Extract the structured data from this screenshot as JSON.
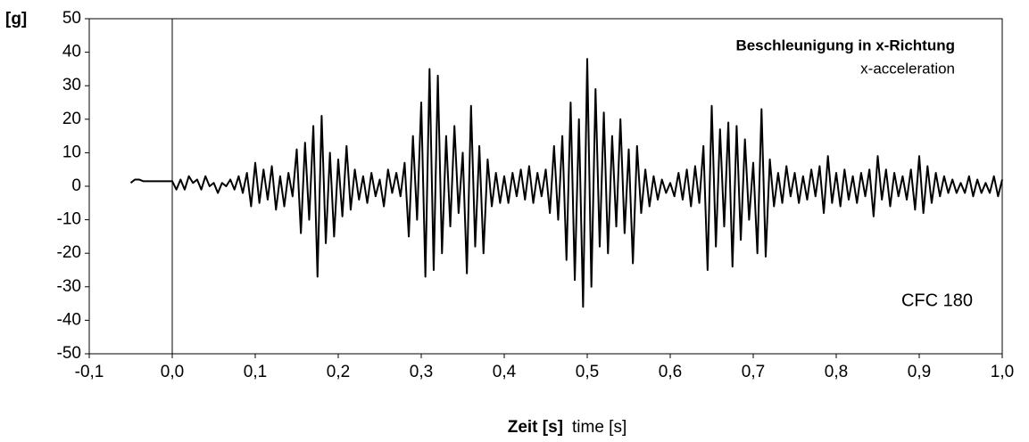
{
  "chart_data": {
    "type": "line",
    "title": "Beschleunigung in x-Richtung",
    "subtitle": "x-acceleration",
    "annotation": "CFC 180",
    "y_label": "[g]",
    "x_label": "Zeit [s]",
    "x_label_en": "time [s]",
    "xlim": [
      -0.1,
      1.0
    ],
    "xticks": [
      {
        "value": -0.1,
        "label": "-0,1"
      },
      {
        "value": 0,
        "label": "0,0"
      },
      {
        "value": 0.1,
        "label": "0,1"
      },
      {
        "value": 0.2,
        "label": "0,2"
      },
      {
        "value": 0.3,
        "label": "0,3"
      },
      {
        "value": 0.4,
        "label": "0,4"
      },
      {
        "value": 0.5,
        "label": "0,5"
      },
      {
        "value": 0.6,
        "label": "0,6"
      },
      {
        "value": 0.7,
        "label": "0,7"
      },
      {
        "value": 0.8,
        "label": "0,8"
      },
      {
        "value": 0.9,
        "label": "0,9"
      },
      {
        "value": 1.0,
        "label": "1,0"
      }
    ],
    "ylim": [
      -50,
      50
    ],
    "yticks": [
      -50,
      -40,
      -30,
      -20,
      -10,
      0,
      10,
      20,
      30,
      40,
      50
    ],
    "grid": false,
    "x": [
      -0.05,
      -0.045,
      -0.04,
      -0.035,
      -0.03,
      -0.025,
      -0.02,
      -0.015,
      -0.01,
      -0.005,
      0,
      0.005,
      0.01,
      0.015,
      0.02,
      0.025,
      0.03,
      0.035,
      0.04,
      0.045,
      0.05,
      0.055,
      0.06,
      0.065,
      0.07,
      0.075,
      0.08,
      0.085,
      0.09,
      0.095,
      0.1,
      0.105,
      0.11,
      0.115,
      0.12,
      0.125,
      0.13,
      0.135,
      0.14,
      0.145,
      0.15,
      0.155,
      0.16,
      0.165,
      0.17,
      0.175,
      0.18,
      0.185,
      0.19,
      0.195,
      0.2,
      0.205,
      0.21,
      0.215,
      0.22,
      0.225,
      0.23,
      0.235,
      0.24,
      0.245,
      0.25,
      0.255,
      0.26,
      0.265,
      0.27,
      0.275,
      0.28,
      0.285,
      0.29,
      0.295,
      0.3,
      0.305,
      0.31,
      0.315,
      0.32,
      0.325,
      0.33,
      0.335,
      0.34,
      0.345,
      0.35,
      0.355,
      0.36,
      0.365,
      0.37,
      0.375,
      0.38,
      0.385,
      0.39,
      0.395,
      0.4,
      0.405,
      0.41,
      0.415,
      0.42,
      0.425,
      0.43,
      0.435,
      0.44,
      0.445,
      0.45,
      0.455,
      0.46,
      0.465,
      0.47,
      0.475,
      0.48,
      0.485,
      0.49,
      0.495,
      0.5,
      0.505,
      0.51,
      0.515,
      0.52,
      0.525,
      0.53,
      0.535,
      0.54,
      0.545,
      0.55,
      0.555,
      0.56,
      0.565,
      0.57,
      0.575,
      0.58,
      0.585,
      0.59,
      0.595,
      0.6,
      0.605,
      0.61,
      0.615,
      0.62,
      0.625,
      0.63,
      0.635,
      0.64,
      0.645,
      0.65,
      0.655,
      0.66,
      0.665,
      0.67,
      0.675,
      0.68,
      0.685,
      0.69,
      0.695,
      0.7,
      0.705,
      0.71,
      0.715,
      0.72,
      0.725,
      0.73,
      0.735,
      0.74,
      0.745,
      0.75,
      0.755,
      0.76,
      0.765,
      0.77,
      0.775,
      0.78,
      0.785,
      0.79,
      0.795,
      0.8,
      0.805,
      0.81,
      0.815,
      0.82,
      0.825,
      0.83,
      0.835,
      0.84,
      0.845,
      0.85,
      0.855,
      0.86,
      0.865,
      0.87,
      0.875,
      0.88,
      0.885,
      0.89,
      0.895,
      0.9,
      0.905,
      0.91,
      0.915,
      0.92,
      0.925,
      0.93,
      0.935,
      0.94,
      0.945,
      0.95,
      0.955,
      0.96,
      0.965,
      0.97,
      0.975,
      0.98,
      0.985,
      0.99,
      0.995,
      1.0
    ],
    "series": [
      {
        "color": "#000000",
        "values": [
          1,
          2,
          2,
          1.5,
          1.5,
          1.5,
          1.5,
          1.5,
          1.5,
          1.5,
          1.5,
          -1,
          2,
          -1,
          3,
          1,
          2,
          -1,
          3,
          0,
          1,
          -2,
          1,
          0,
          2,
          -1,
          3,
          -2,
          4,
          -6,
          7,
          -5,
          5,
          -4,
          6,
          -7,
          3,
          -6,
          4,
          -3,
          11,
          -14,
          13,
          -10,
          18,
          -27,
          21,
          -17,
          10,
          -15,
          8,
          -9,
          12,
          -7,
          5,
          -4,
          3,
          -5,
          4,
          -3,
          2,
          -6,
          5,
          -2,
          4,
          -3,
          7,
          -15,
          15,
          -10,
          25,
          -27,
          35,
          -25,
          33,
          -20,
          15,
          -12,
          18,
          -8,
          10,
          -26,
          24,
          -18,
          12,
          -20,
          8,
          -6,
          4,
          -5,
          3,
          -5,
          4,
          -3,
          5,
          -4,
          6,
          -5,
          4,
          -3,
          5,
          -8,
          12,
          -10,
          15,
          -22,
          25,
          -28,
          20,
          -36,
          38,
          -30,
          29,
          -18,
          22,
          -20,
          15,
          -12,
          20,
          -14,
          11,
          -23,
          12,
          -8,
          5,
          -6,
          3,
          -4,
          2,
          -2,
          1,
          -3,
          4,
          -4,
          5,
          -6,
          6,
          -5,
          12,
          -25,
          24,
          -18,
          17,
          -12,
          19,
          -24,
          18,
          -16,
          14,
          -10,
          7,
          -20,
          23,
          -21,
          8,
          -6,
          4,
          -5,
          6,
          -3,
          4,
          -5,
          3,
          -4,
          5,
          -3,
          6,
          -8,
          9,
          -5,
          4,
          -6,
          5,
          -4,
          3,
          -5,
          4,
          -3,
          5,
          -9,
          9,
          -4,
          5,
          -6,
          4,
          -3,
          3,
          -4,
          5,
          -7,
          9,
          -8,
          6,
          -5,
          4,
          -3,
          3,
          -2,
          2,
          -2,
          1,
          -2,
          3,
          -3,
          2,
          -2,
          1,
          -2,
          3,
          -3,
          2
        ]
      }
    ]
  }
}
